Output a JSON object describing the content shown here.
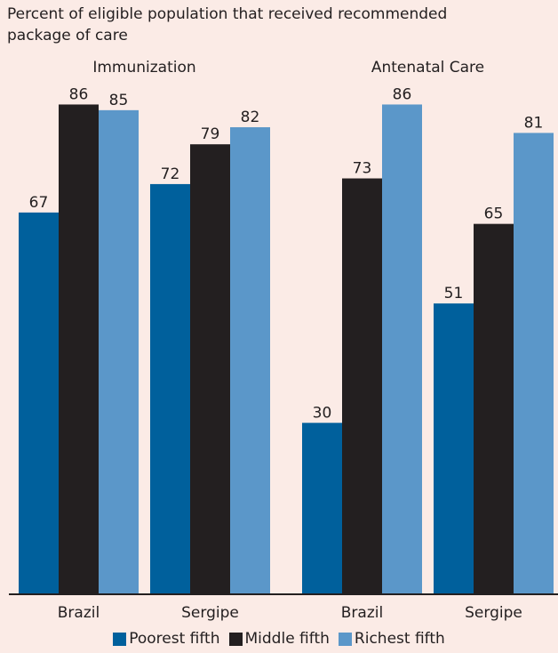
{
  "chart_data": {
    "type": "bar",
    "title": "Percent of eligible population that received recommended package of care",
    "xlabel": "",
    "ylabel": "",
    "ylim": [
      0,
      100
    ],
    "grid": false,
    "legend_position": "bottom",
    "groups": [
      {
        "name": "Immunization",
        "categories": [
          "Brazil",
          "Sergipe"
        ]
      },
      {
        "name": "Antenatal Care",
        "categories": [
          "Brazil",
          "Sergipe"
        ]
      }
    ],
    "series": [
      {
        "name": "Poorest fifth",
        "color": "#00609c",
        "values": [
          [
            67,
            72
          ],
          [
            30,
            51
          ]
        ]
      },
      {
        "name": "Middle fifth",
        "color": "#231f20",
        "values": [
          [
            86,
            79
          ],
          [
            73,
            65
          ]
        ]
      },
      {
        "name": "Richest fifth",
        "color": "#5b97c9",
        "values": [
          [
            85,
            82
          ],
          [
            86,
            81
          ]
        ]
      }
    ]
  }
}
